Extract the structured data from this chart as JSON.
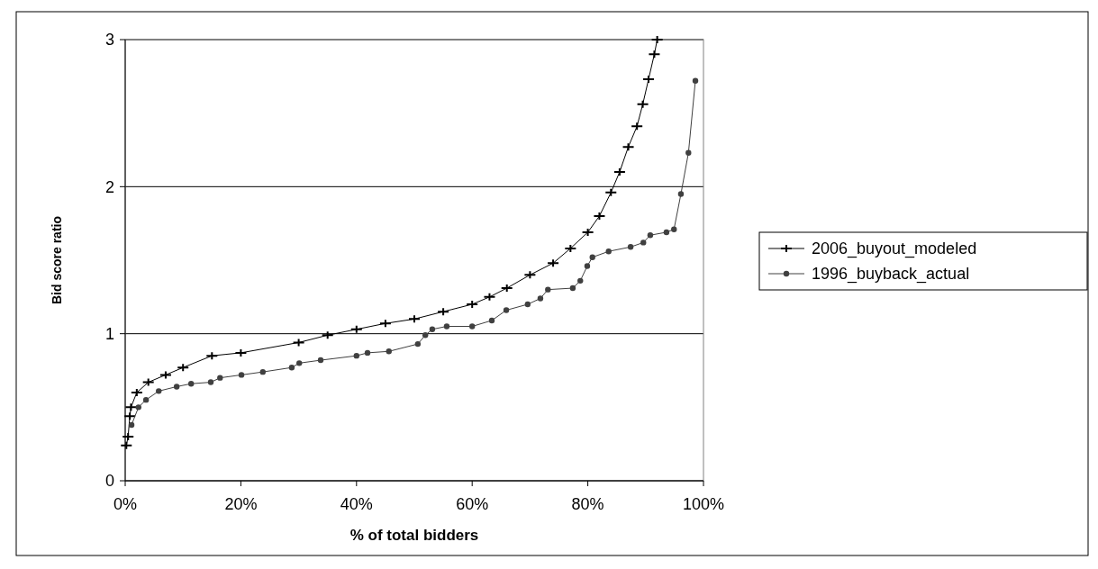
{
  "chart_data": {
    "type": "line",
    "xlabel": "% of total bidders",
    "ylabel": "Bid score ratio",
    "xlim": [
      0,
      100
    ],
    "xticks": [
      {
        "value": 0,
        "label": "0%"
      },
      {
        "value": 20,
        "label": "20%"
      },
      {
        "value": 40,
        "label": "40%"
      },
      {
        "value": 60,
        "label": "60%"
      },
      {
        "value": 80,
        "label": "80%"
      },
      {
        "value": 100,
        "label": "100%"
      }
    ],
    "ylim": [
      0,
      3
    ],
    "yticks": [
      0,
      1,
      2,
      3
    ],
    "grid": "y",
    "legend": "right",
    "series": [
      {
        "name": "2006_buyout_modeled",
        "color": "#000000",
        "marker": "cross",
        "x": [
          0.2,
          0.5,
          0.8,
          1,
          2,
          4,
          7,
          10,
          15,
          20,
          30,
          35,
          40,
          45,
          50,
          55,
          60,
          63,
          66,
          70,
          74,
          77,
          80,
          82,
          84,
          85.5,
          87,
          88.5,
          89.5,
          90.5,
          91.5,
          92
        ],
        "values": [
          0.24,
          0.3,
          0.44,
          0.5,
          0.6,
          0.67,
          0.72,
          0.77,
          0.85,
          0.87,
          0.94,
          0.99,
          1.03,
          1.07,
          1.1,
          1.15,
          1.2,
          1.25,
          1.31,
          1.4,
          1.48,
          1.58,
          1.69,
          1.8,
          1.96,
          2.1,
          2.27,
          2.41,
          2.56,
          2.73,
          2.9,
          3.0
        ]
      },
      {
        "name": "1996_buyback_actual",
        "color": "#404040",
        "marker": "circle",
        "x": [
          1.1,
          2.3,
          3.6,
          5.8,
          8.9,
          11.4,
          14.8,
          16.4,
          20.1,
          23.8,
          28.8,
          30.1,
          33.8,
          40,
          41.9,
          45.6,
          50.6,
          51.9,
          53.1,
          55.6,
          60,
          63.4,
          65.9,
          69.6,
          71.8,
          73.1,
          77.4,
          78.7,
          79.9,
          80.8,
          83.6,
          87.4,
          89.6,
          90.8,
          93.6,
          94.9,
          96.1,
          97.4,
          98.6
        ],
        "values": [
          0.38,
          0.5,
          0.55,
          0.61,
          0.64,
          0.66,
          0.67,
          0.7,
          0.72,
          0.74,
          0.77,
          0.8,
          0.82,
          0.85,
          0.87,
          0.88,
          0.93,
          0.99,
          1.03,
          1.05,
          1.05,
          1.09,
          1.16,
          1.2,
          1.24,
          1.3,
          1.31,
          1.36,
          1.46,
          1.52,
          1.56,
          1.59,
          1.62,
          1.67,
          1.69,
          1.71,
          1.95,
          2.23,
          2.72
        ]
      }
    ]
  }
}
